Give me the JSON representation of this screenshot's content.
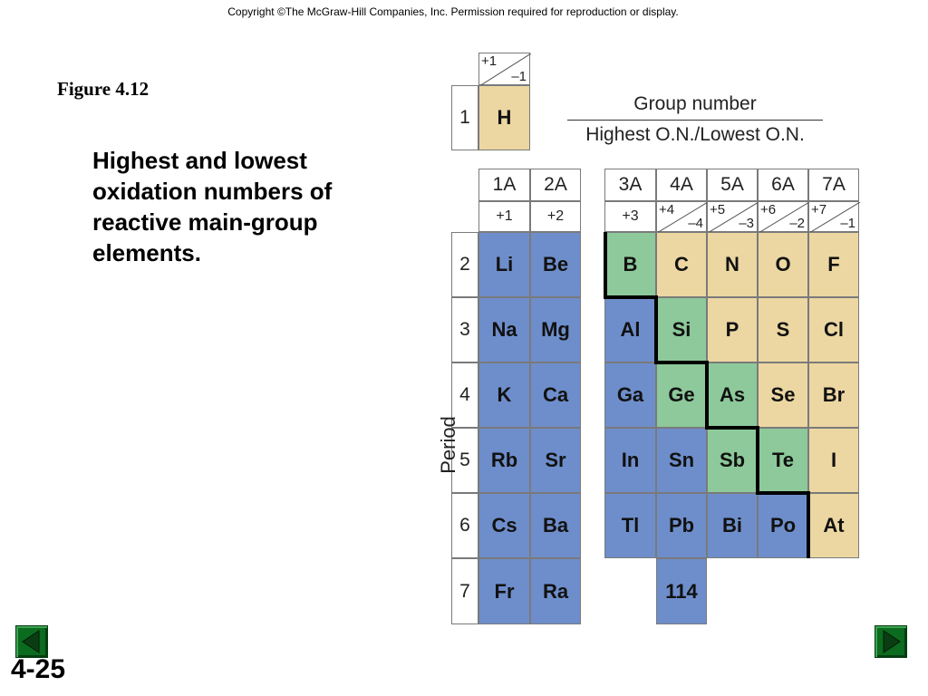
{
  "copyright": "Copyright ©The McGraw-Hill Companies, Inc.  Permission required for reproduction or display.",
  "figure_label": "Figure 4.12",
  "caption": "Highest and lowest oxidation numbers of reactive main-group elements.",
  "slide_number": "4-25",
  "legend": {
    "top": "Group number",
    "bottom": "Highest O.N./Lowest O.N."
  },
  "period_axis_label": "Period",
  "periods": [
    "1",
    "2",
    "3",
    "4",
    "5",
    "6",
    "7"
  ],
  "hydrogen": {
    "symbol": "H",
    "highest": "+1",
    "lowest": "–1"
  },
  "groups": [
    {
      "name": "1A",
      "on": "+1"
    },
    {
      "name": "2A",
      "on": "+2"
    },
    {
      "name": "3A",
      "on": "+3"
    },
    {
      "name": "4A",
      "highest": "+4",
      "lowest": "–4"
    },
    {
      "name": "5A",
      "highest": "+5",
      "lowest": "–3"
    },
    {
      "name": "6A",
      "highest": "+6",
      "lowest": "–2"
    },
    {
      "name": "7A",
      "highest": "+7",
      "lowest": "–1"
    }
  ],
  "elements": {
    "p2": [
      "Li",
      "Be",
      "B",
      "C",
      "N",
      "O",
      "F"
    ],
    "p3": [
      "Na",
      "Mg",
      "Al",
      "Si",
      "P",
      "S",
      "Cl"
    ],
    "p4": [
      "K",
      "Ca",
      "Ga",
      "Ge",
      "As",
      "Se",
      "Br"
    ],
    "p5": [
      "Rb",
      "Sr",
      "In",
      "Sn",
      "Sb",
      "Te",
      "I"
    ],
    "p6": [
      "Cs",
      "Ba",
      "Tl",
      "Pb",
      "Bi",
      "Po",
      "At"
    ],
    "p7": [
      "Fr",
      "Ra",
      "114"
    ]
  },
  "colors": {
    "metal": "#6e8ecb",
    "metalloid": "#8dc99a",
    "nonmetal": "#ecd7a2",
    "nav": "#0b6b1e"
  },
  "nav": {
    "prev_icon": "triangle-left-icon",
    "next_icon": "triangle-right-icon"
  }
}
